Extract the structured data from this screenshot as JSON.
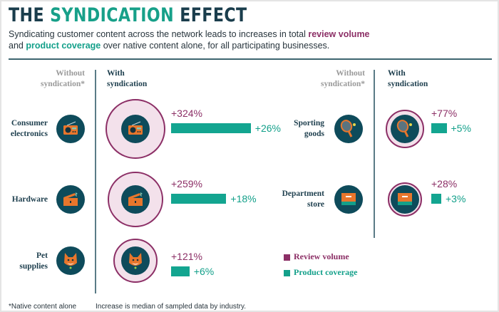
{
  "title": {
    "part1": "THE ",
    "highlight": "SYNDICATION",
    "part2": " EFFECT"
  },
  "subtitle": {
    "line1_text": "Syndicating customer content across the network leads to increases in total ",
    "line1_highlight": "review volume",
    "line2_start": "and ",
    "line2_highlight": "product coverage",
    "line2_end": " over native content alone, for all participating businesses."
  },
  "column_headers": {
    "without_line1": "Without",
    "without_line2": "syndication*",
    "with_line1": "With",
    "with_line2": "syndication"
  },
  "categories": [
    {
      "name_line1": "Consumer",
      "name_line2": "electronics",
      "icon": "radio-icon",
      "review_volume": "+324%",
      "product_coverage": "+26%",
      "review_value": 324,
      "coverage_value": 26
    },
    {
      "name_line1": "Hardware",
      "name_line2": "",
      "icon": "toolbox-icon",
      "review_volume": "+259%",
      "product_coverage": "+18%",
      "review_value": 259,
      "coverage_value": 18
    },
    {
      "name_line1": "Pet",
      "name_line2": "supplies",
      "icon": "cat-icon",
      "review_volume": "+121%",
      "product_coverage": "+6%",
      "review_value": 121,
      "coverage_value": 6
    },
    {
      "name_line1": "Sporting",
      "name_line2": "goods",
      "icon": "tennis-racket-icon",
      "review_volume": "+77%",
      "product_coverage": "+5%",
      "review_value": 77,
      "coverage_value": 5
    },
    {
      "name_line1": "Department",
      "name_line2": "store",
      "icon": "store-box-icon",
      "review_volume": "+28%",
      "product_coverage": "+3%",
      "review_value": 28,
      "coverage_value": 3
    }
  ],
  "legend": {
    "review": "Review volume",
    "coverage": "Product coverage"
  },
  "footer": {
    "note": "*Native content alone",
    "source": "Increase is median of sampled data by industry."
  },
  "colors": {
    "navy": "#1e3f4e",
    "teal": "#13a08a",
    "purple": "#8c2f66",
    "orange": "#e8762c"
  }
}
